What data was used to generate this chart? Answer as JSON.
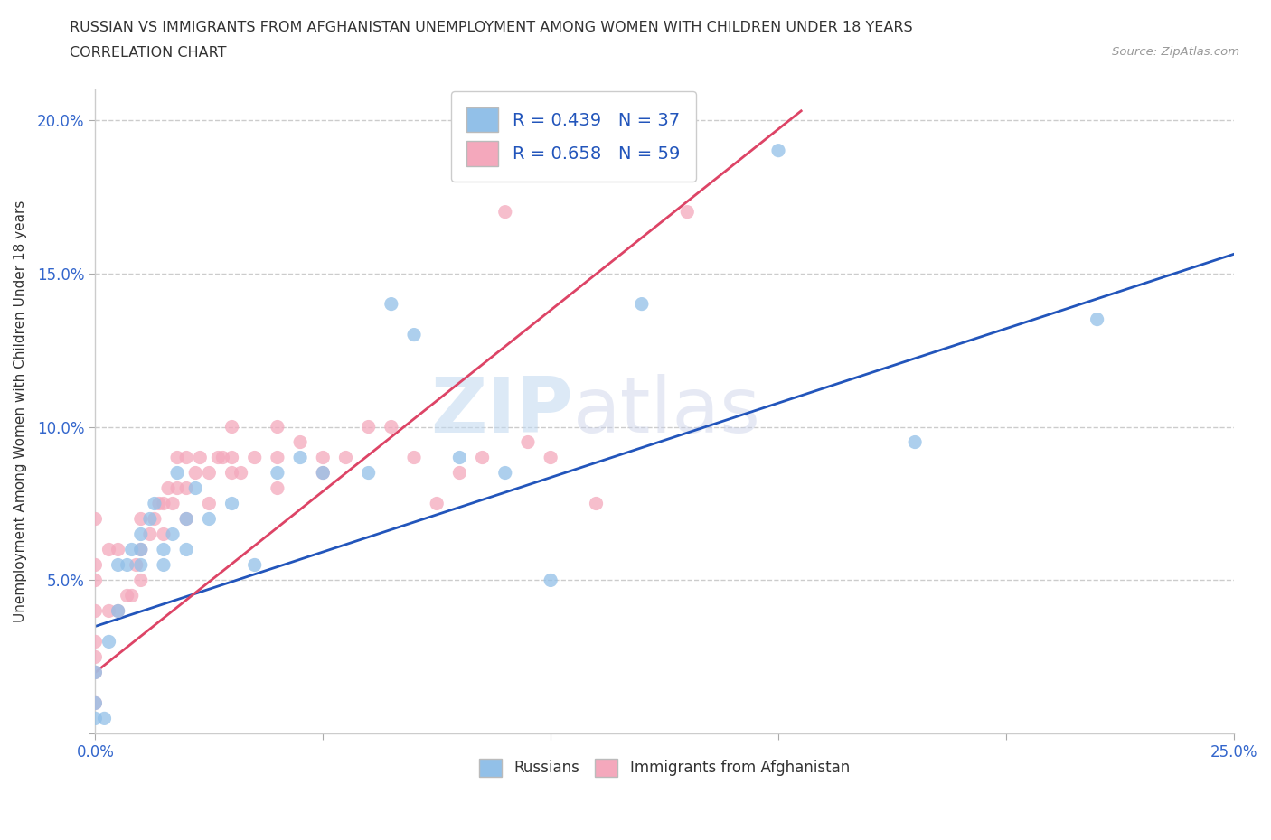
{
  "title_line1": "RUSSIAN VS IMMIGRANTS FROM AFGHANISTAN UNEMPLOYMENT AMONG WOMEN WITH CHILDREN UNDER 18 YEARS",
  "title_line2": "CORRELATION CHART",
  "source_text": "Source: ZipAtlas.com",
  "ylabel": "Unemployment Among Women with Children Under 18 years",
  "xlim": [
    0,
    0.25
  ],
  "ylim": [
    0,
    0.21
  ],
  "xticks": [
    0.0,
    0.05,
    0.1,
    0.15,
    0.2,
    0.25
  ],
  "yticks": [
    0.0,
    0.05,
    0.1,
    0.15,
    0.2
  ],
  "watermark_part1": "ZIP",
  "watermark_part2": "atlas",
  "legend_R1": "R = 0.439",
  "legend_N1": "N = 37",
  "legend_R2": "R = 0.658",
  "legend_N2": "N = 59",
  "russians_color": "#92c0e8",
  "afghanistan_color": "#f4a8bc",
  "trendline_russian_color": "#2255bb",
  "trendline_afghan_color": "#dd4466",
  "background_color": "#ffffff",
  "russians_x": [
    0.0,
    0.0,
    0.0,
    0.002,
    0.003,
    0.005,
    0.005,
    0.007,
    0.008,
    0.01,
    0.01,
    0.01,
    0.012,
    0.013,
    0.015,
    0.015,
    0.017,
    0.018,
    0.02,
    0.02,
    0.022,
    0.025,
    0.03,
    0.035,
    0.04,
    0.045,
    0.05,
    0.06,
    0.065,
    0.07,
    0.08,
    0.09,
    0.1,
    0.12,
    0.15,
    0.18,
    0.22
  ],
  "russians_y": [
    0.005,
    0.01,
    0.02,
    0.005,
    0.03,
    0.04,
    0.055,
    0.055,
    0.06,
    0.055,
    0.06,
    0.065,
    0.07,
    0.075,
    0.055,
    0.06,
    0.065,
    0.085,
    0.06,
    0.07,
    0.08,
    0.07,
    0.075,
    0.055,
    0.085,
    0.09,
    0.085,
    0.085,
    0.14,
    0.13,
    0.09,
    0.085,
    0.05,
    0.14,
    0.19,
    0.095,
    0.135
  ],
  "afghan_x": [
    0.0,
    0.0,
    0.0,
    0.0,
    0.0,
    0.0,
    0.0,
    0.0,
    0.003,
    0.003,
    0.005,
    0.005,
    0.007,
    0.008,
    0.009,
    0.01,
    0.01,
    0.01,
    0.012,
    0.013,
    0.014,
    0.015,
    0.015,
    0.016,
    0.017,
    0.018,
    0.018,
    0.02,
    0.02,
    0.02,
    0.022,
    0.023,
    0.025,
    0.025,
    0.027,
    0.028,
    0.03,
    0.03,
    0.03,
    0.032,
    0.035,
    0.04,
    0.04,
    0.04,
    0.045,
    0.05,
    0.05,
    0.055,
    0.06,
    0.065,
    0.07,
    0.075,
    0.08,
    0.085,
    0.09,
    0.095,
    0.1,
    0.11,
    0.13
  ],
  "afghan_y": [
    0.01,
    0.02,
    0.025,
    0.03,
    0.04,
    0.05,
    0.055,
    0.07,
    0.04,
    0.06,
    0.04,
    0.06,
    0.045,
    0.045,
    0.055,
    0.05,
    0.06,
    0.07,
    0.065,
    0.07,
    0.075,
    0.065,
    0.075,
    0.08,
    0.075,
    0.08,
    0.09,
    0.07,
    0.08,
    0.09,
    0.085,
    0.09,
    0.075,
    0.085,
    0.09,
    0.09,
    0.085,
    0.09,
    0.1,
    0.085,
    0.09,
    0.08,
    0.09,
    0.1,
    0.095,
    0.085,
    0.09,
    0.09,
    0.1,
    0.1,
    0.09,
    0.075,
    0.085,
    0.09,
    0.17,
    0.095,
    0.09,
    0.075,
    0.17
  ],
  "trendline_russian_slope": 0.485,
  "trendline_russian_intercept": 0.035,
  "trendline_afghan_slope": 1.18,
  "trendline_afghan_intercept": 0.02
}
